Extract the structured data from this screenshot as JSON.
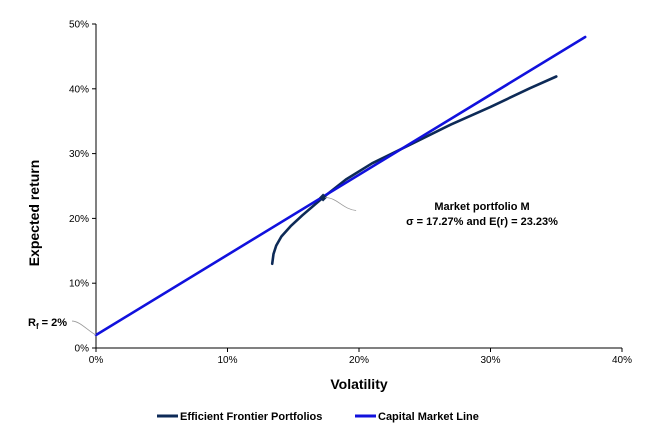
{
  "chart_data": {
    "type": "line",
    "xlabel": "Volatility",
    "ylabel": "Expected return",
    "xlim": [
      0,
      0.4
    ],
    "ylim": [
      0,
      0.5
    ],
    "x_ticks": [
      "0%",
      "10%",
      "20%",
      "30%",
      "40%"
    ],
    "y_ticks": [
      "0%",
      "10%",
      "20%",
      "30%",
      "40%",
      "50%"
    ],
    "grid": false,
    "legend_position": "bottom",
    "series": [
      {
        "name": "Efficient Frontier Portfolios",
        "color": "#0d2a57",
        "x": [
          0.134,
          0.135,
          0.137,
          0.141,
          0.148,
          0.157,
          0.1727,
          0.19,
          0.21,
          0.24,
          0.27,
          0.3,
          0.33,
          0.35
        ],
        "y": [
          0.13,
          0.145,
          0.158,
          0.172,
          0.188,
          0.205,
          0.2323,
          0.26,
          0.285,
          0.315,
          0.345,
          0.372,
          0.401,
          0.419
        ]
      },
      {
        "name": "Capital Market Line",
        "color": "#1111dd",
        "x": [
          0.0,
          0.372
        ],
        "y": [
          0.02,
          0.48
        ]
      }
    ],
    "annotations": {
      "rf_label_main": "R",
      "rf_label_sub": "f",
      "rf_label_tail": " = 2%",
      "market_title": "Market portfolio M",
      "market_detail": "σ  = 17.27% and E(r) =  23.23%"
    },
    "market_point": {
      "x": 0.1727,
      "y": 0.2323
    }
  }
}
